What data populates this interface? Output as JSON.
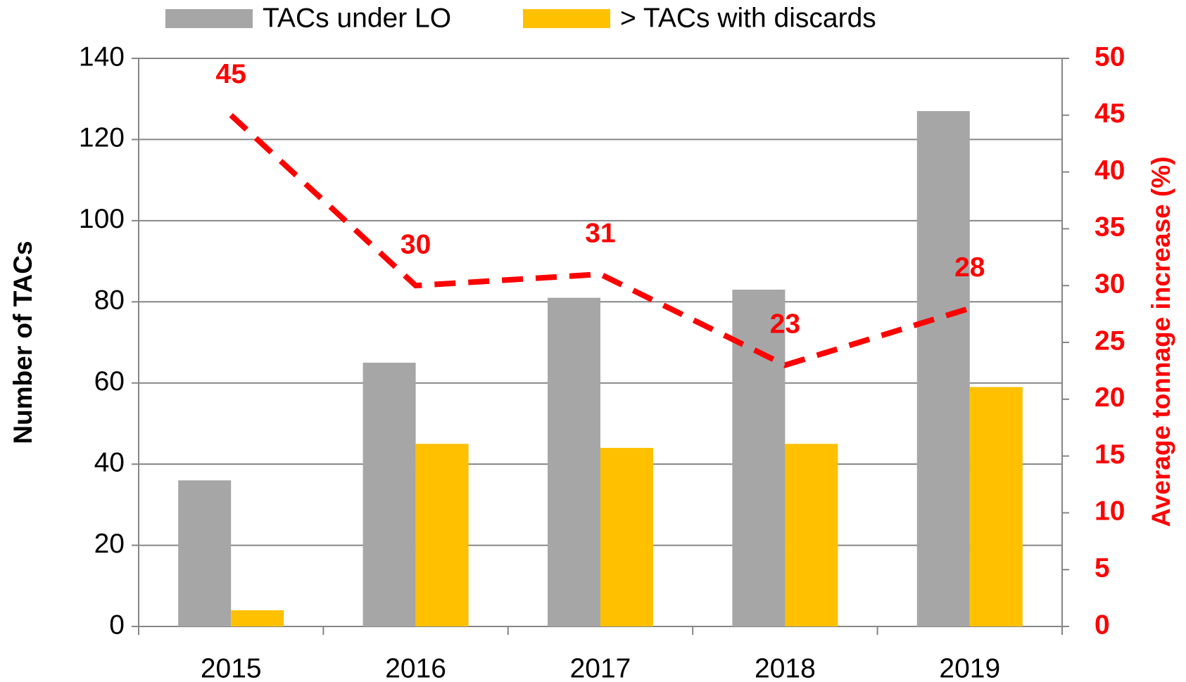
{
  "chart_data": {
    "type": "bar",
    "categories": [
      "2015",
      "2016",
      "2017",
      "2018",
      "2019"
    ],
    "series": [
      {
        "name": "TACs under LO",
        "color": "#a6a6a6",
        "values": [
          36,
          65,
          81,
          83,
          127
        ]
      },
      {
        "name": "> TACs with discards",
        "color": "#ffc000",
        "values": [
          4,
          45,
          44,
          45,
          59
        ]
      },
      {
        "type": "line",
        "axis": "y2",
        "color": "#ff0000",
        "values": [
          45,
          30,
          31,
          23,
          28
        ]
      }
    ],
    "ylabel": "Number of TACs",
    "y2label": "Average tonnage increase (%)",
    "ylim": [
      0,
      140
    ],
    "yticks": [
      0,
      20,
      40,
      60,
      80,
      100,
      120,
      140
    ],
    "y2lim": [
      0,
      50
    ],
    "y2ticks": [
      0,
      5,
      10,
      15,
      20,
      25,
      30,
      35,
      40,
      45,
      50
    ],
    "grid": true,
    "legend": "top"
  }
}
